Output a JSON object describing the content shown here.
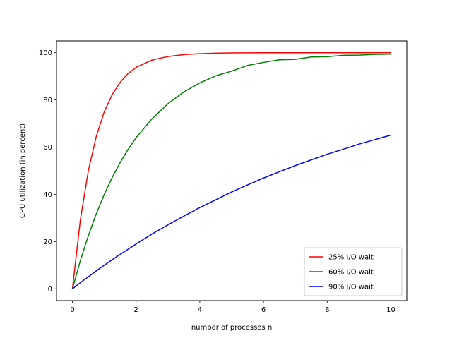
{
  "chart_data": {
    "type": "line",
    "xlabel": "number of processes n",
    "ylabel": "CPU utilization (in percent)",
    "xlim": [
      -0.5,
      10.5
    ],
    "ylim": [
      -5,
      105
    ],
    "xticks": [
      0,
      2,
      4,
      6,
      8,
      10
    ],
    "yticks": [
      0,
      20,
      40,
      60,
      80,
      100
    ],
    "grid": false,
    "legend_position": "bottom-right",
    "x": [
      0,
      0.25,
      0.5,
      0.75,
      1,
      1.25,
      1.5,
      1.75,
      2,
      2.5,
      3,
      3.5,
      4,
      4.5,
      5,
      5.5,
      6,
      6.5,
      7,
      7.5,
      8,
      8.5,
      9,
      9.5,
      10
    ],
    "series": [
      {
        "name": "25% I/O wait",
        "color": "#ff0000",
        "values": [
          0,
          29.3,
          50.0,
          64.6,
          75.0,
          82.3,
          87.5,
          91.2,
          93.8,
          96.9,
          98.4,
          99.2,
          99.6,
          99.8,
          99.9,
          99.95,
          99.98,
          99.99,
          99.99,
          100.0,
          100.0,
          100.0,
          100.0,
          100.0,
          100.0
        ]
      },
      {
        "name": "60% I/O wait",
        "color": "#008000",
        "values": [
          0,
          12.0,
          22.5,
          31.8,
          40.0,
          47.2,
          53.5,
          59.1,
          64.0,
          72.0,
          78.4,
          83.4,
          87.2,
          90.2,
          92.2,
          94.6,
          95.9,
          97.0,
          97.2,
          98.2,
          98.3,
          98.9,
          99.0,
          99.3,
          99.4
        ]
      },
      {
        "name": "90% I/O wait",
        "color": "#0000ff",
        "values": [
          0,
          2.6,
          5.1,
          7.6,
          10.0,
          12.3,
          14.6,
          16.8,
          19.0,
          23.2,
          27.1,
          30.8,
          34.4,
          37.7,
          41.0,
          44.0,
          46.9,
          49.6,
          52.2,
          54.6,
          57.0,
          59.1,
          61.3,
          63.2,
          65.1
        ]
      }
    ]
  }
}
